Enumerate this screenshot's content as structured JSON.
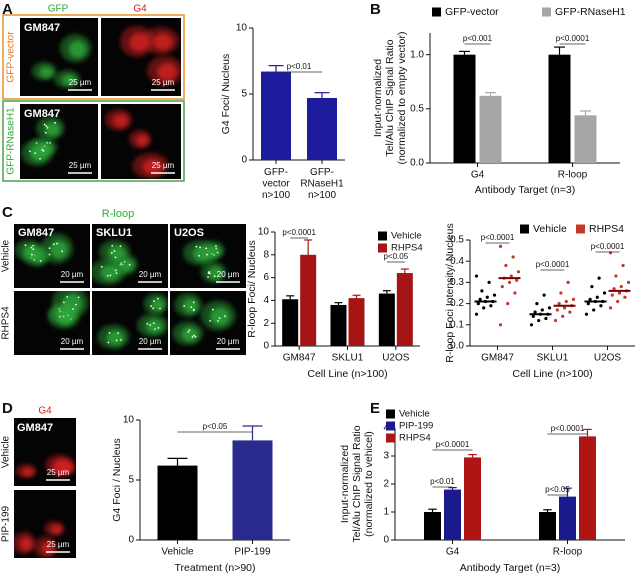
{
  "panels": {
    "letters": [
      "A",
      "B",
      "C",
      "D",
      "E"
    ]
  },
  "images": [
    {
      "columns": [
        "GFP",
        "G4"
      ],
      "rows": [
        "GFP-vector",
        "GFP-RNaseH1"
      ],
      "cell_labels": [
        "GM847",
        "GM847"
      ],
      "scale_bars": [
        "25 µm",
        "25 µm",
        "25 µm",
        "25 µm"
      ]
    },
    {
      "title": "R-loop",
      "columns": [
        "GM847",
        "SKLU1",
        "U2OS"
      ],
      "rows": [
        "Vehicle",
        "RHPS4"
      ],
      "scale_bars": [
        "20 µm",
        "20 µm",
        "20 µm",
        "20 µm",
        "20 µm",
        "20 µm"
      ]
    },
    {
      "title": "G4",
      "cell_labels": [
        "GM847"
      ],
      "rows": [
        "Vehicle",
        "PIP-199"
      ],
      "scale_bars": [
        "25 µm",
        "25 µm"
      ]
    }
  ],
  "chart_data": [
    {
      "type": "bar",
      "categories": [
        "GFP-\nvector\nn>100",
        "GFP-\nRNaseH1\nn>100"
      ],
      "values": [
        6.7,
        4.7
      ],
      "errors": [
        0.45,
        0.4
      ],
      "color": "#1c1c9c",
      "ylabel": "G4 Foci/ Nucleus",
      "ylim": [
        0,
        10
      ],
      "yticks": [
        0,
        5,
        10
      ],
      "annotations": [
        "p<0.01"
      ]
    },
    {
      "type": "bar",
      "categories": [
        "G4",
        "R-loop"
      ],
      "series": [
        {
          "name": "GFP-vector",
          "color": "#000000",
          "values": [
            1.0,
            1.0
          ],
          "errors": [
            0.03,
            0.07
          ]
        },
        {
          "name": "GFP-RNaseH1",
          "color": "#a6a6a6",
          "values": [
            0.62,
            0.44
          ],
          "errors": [
            0.03,
            0.04
          ]
        }
      ],
      "ylabel": [
        "Input-normalized",
        "Tel/Alu ChIP Signal Ratio",
        "(normalized to empty vector)"
      ],
      "xlabel": "Antibody Target (n=3)",
      "ylim": [
        0,
        1.2
      ],
      "yticks": [
        {
          "value": 0,
          "label": "0.0"
        },
        0.5,
        {
          "value": 1,
          "label": "1.0"
        }
      ],
      "annotations": [
        "p<0.001",
        "p<0.0001"
      ]
    },
    {
      "type": "bar",
      "categories": [
        "GM847",
        "SKLU1",
        "U2OS"
      ],
      "series": [
        {
          "name": "Vehicle",
          "color": "#000000",
          "values": [
            4.1,
            3.6,
            4.6
          ],
          "errors": [
            0.3,
            0.2,
            0.25
          ]
        },
        {
          "name": "RHPS4",
          "color": "#a51515",
          "values": [
            8.0,
            4.2,
            6.4
          ],
          "errors": [
            1.3,
            0.25,
            0.35
          ]
        }
      ],
      "ylabel": "R-loop Foci/ Nucleus",
      "xlabel": "Cell Line (n>100)",
      "ylim": [
        0,
        10
      ],
      "yticks": [
        0,
        2,
        4,
        6,
        8,
        10
      ],
      "annotations": [
        "p<0.0001",
        "p<0.05"
      ]
    },
    {
      "type": "strip",
      "categories": [
        "GM847",
        "SKLU1",
        "U2OS"
      ],
      "series": [
        {
          "name": "Vehicle",
          "color": "#000000",
          "values": [
            [
              0.15,
              0.18,
              0.19,
              0.2,
              0.21,
              0.21,
              0.22,
              0.23,
              0.24,
              0.26,
              0.3,
              0.33
            ],
            [
              0.1,
              0.12,
              0.13,
              0.14,
              0.15,
              0.15,
              0.16,
              0.17,
              0.18,
              0.2,
              0.24
            ],
            [
              0.15,
              0.17,
              0.19,
              0.2,
              0.21,
              0.21,
              0.22,
              0.23,
              0.25,
              0.28,
              0.32
            ]
          ],
          "means": [
            0.21,
            0.15,
            0.21
          ]
        },
        {
          "name": "RHPS4",
          "color": "#c0392b",
          "values": [
            [
              0.1,
              0.2,
              0.25,
              0.28,
              0.3,
              0.31,
              0.32,
              0.33,
              0.35,
              0.38,
              0.42,
              0.47
            ],
            [
              0.12,
              0.14,
              0.16,
              0.17,
              0.18,
              0.19,
              0.2,
              0.21,
              0.22,
              0.25,
              0.3
            ],
            [
              0.18,
              0.21,
              0.23,
              0.24,
              0.25,
              0.26,
              0.27,
              0.28,
              0.3,
              0.33,
              0.38,
              0.44
            ]
          ],
          "means": [
            0.32,
            0.19,
            0.26
          ]
        }
      ],
      "ylabel": "R-loop Foci Intensity/ Nucleus",
      "xlabel": "Cell Line (n>100)",
      "ylim": [
        0,
        0.5
      ],
      "yticks": [
        {
          "value": 0,
          "label": "0.0"
        },
        0.1,
        0.2,
        0.3,
        0.4,
        0.5
      ],
      "annotations": [
        "p<0.0001",
        "p<0.0001",
        "p<0.0001"
      ]
    },
    {
      "type": "bar",
      "categories": [
        "Vehicle",
        "PIP-199"
      ],
      "values": [
        6.2,
        8.3
      ],
      "errors": [
        0.6,
        1.2
      ],
      "colors": [
        "#000000",
        "#2b2b8f"
      ],
      "ylabel": "G4 Foci / Nucleus",
      "xlabel": "Treatment (n>90)",
      "ylim": [
        0,
        10
      ],
      "yticks": [
        0,
        5,
        10
      ],
      "annotations": [
        "p<0.05"
      ]
    },
    {
      "type": "bar",
      "categories": [
        "G4",
        "R-loop"
      ],
      "series": [
        {
          "name": "Vehicle",
          "color": "#000000",
          "values": [
            1.0,
            1.0
          ],
          "errors": [
            0.1,
            0.08
          ]
        },
        {
          "name": "PIP-199",
          "color": "#1a1a8c",
          "values": [
            1.8,
            1.55
          ],
          "errors": [
            0.07,
            0.3
          ]
        },
        {
          "name": "RHPS4",
          "color": "#b01515",
          "values": [
            2.95,
            3.7
          ],
          "errors": [
            0.1,
            0.25
          ]
        }
      ],
      "ylabel": [
        "Input-normalized",
        "Tel/Alu ChIP Signal Ratio",
        "(normalized to vehicel)"
      ],
      "xlabel": "Antibody Target (n=3)",
      "ylim": [
        0,
        4
      ],
      "yticks": [
        0,
        1,
        2,
        3,
        4
      ],
      "annotations": [
        "p<0.01",
        "p<0.0001",
        "p<0.05",
        "p<0.0001"
      ]
    }
  ]
}
